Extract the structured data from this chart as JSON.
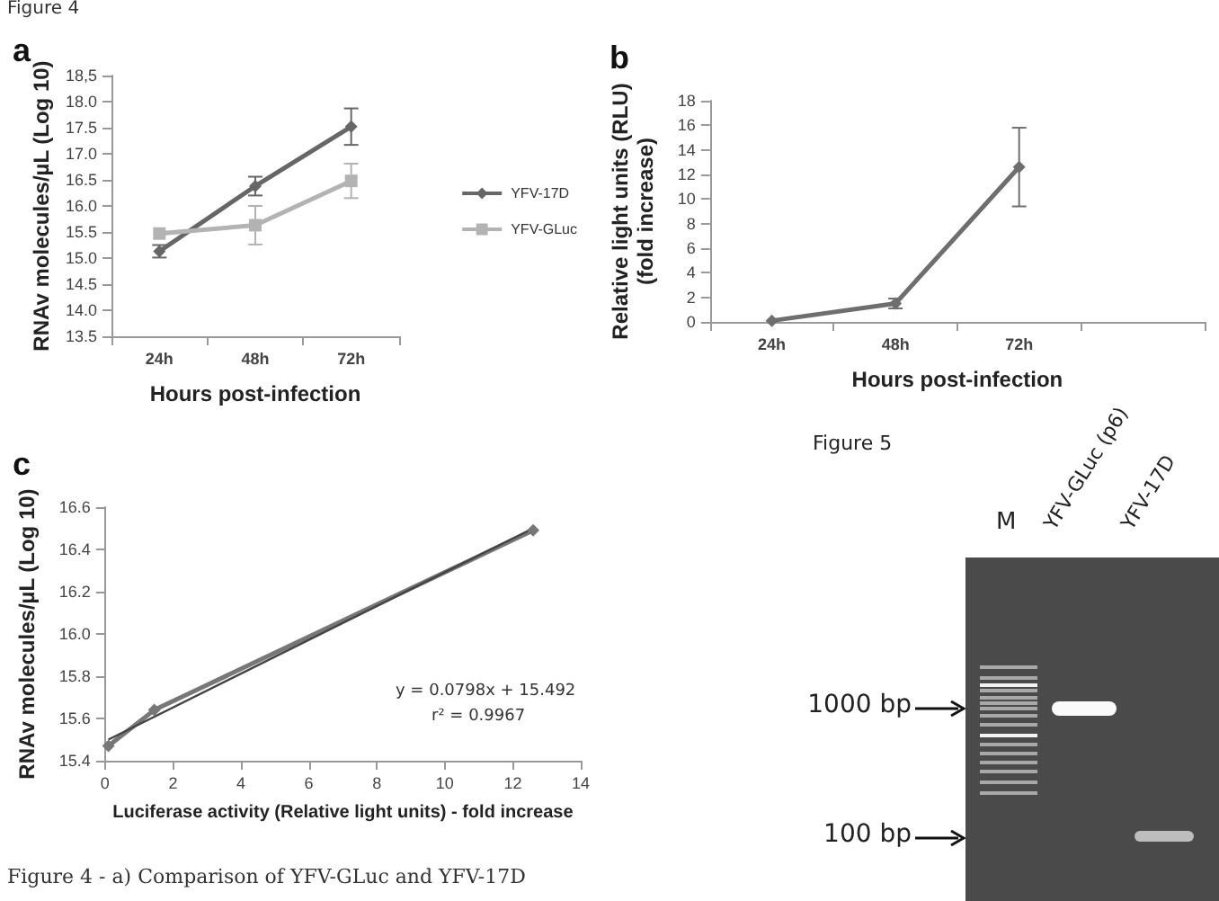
{
  "chart_data": [
    {
      "type": "line",
      "title": "a",
      "annotations": [
        "Figure 4"
      ],
      "xlabel": "Hours post-infection",
      "ylabel": "RNAv molecules/µL (Log 10)",
      "categories": [
        "24h",
        "48h",
        "72h"
      ],
      "series": [
        {
          "name": "YFV-17D",
          "color": "#666666",
          "marker": "diamond",
          "values": [
            15.13,
            16.38,
            17.52
          ],
          "errors": [
            0.12,
            0.18,
            0.35
          ]
        },
        {
          "name": "YFV-GLuc",
          "color": "#b3b3b3",
          "marker": "square",
          "values": [
            15.47,
            15.63,
            16.48
          ],
          "errors": [
            null,
            0.37,
            0.33
          ]
        }
      ],
      "ylim": [
        13.5,
        18.5
      ],
      "yticks": [
        13.5,
        {
          "value": 14,
          "label": "14.0"
        },
        14.5,
        {
          "value": 15,
          "label": "15.0"
        },
        15.5,
        {
          "value": 16,
          "label": "16.0"
        },
        16.5,
        {
          "value": 17,
          "label": "17.0"
        },
        17.5,
        {
          "value": 18,
          "label": "18.0"
        },
        {
          "value": 18.5,
          "label": "18,5"
        }
      ],
      "legend": "right"
    },
    {
      "type": "line",
      "title": "b",
      "xlabel": "Hours post-infection",
      "ylabel": "Relative light units (RLU)\n(fold increase)",
      "categories": [
        "24h",
        "48h",
        "72h",
        null
      ],
      "series": [
        {
          "color": "#6e6e6e",
          "marker": "diamond",
          "values": [
            0.1,
            1.5,
            12.6,
            null
          ],
          "errors": [
            null,
            0.4,
            3.2,
            null
          ]
        }
      ],
      "ylim": [
        0,
        18
      ],
      "yticks": [
        0,
        2,
        4,
        6,
        8,
        10,
        12,
        14,
        16,
        18
      ]
    },
    {
      "type": "line",
      "title": "c",
      "annotations": [
        "y = 0.0798x + 15.492",
        "r² = 0.9967",
        "Figure 4 - a) Comparison of YFV-GLuc and YFV-17D"
      ],
      "xlabel": "Luciferase activity (Relative light units) - fold increase",
      "ylabel": "RNAv molecules/µL (Log 10)",
      "series": [
        {
          "color": "#777777",
          "marker": "diamond",
          "x": [
            0.1,
            1.45,
            12.6
          ],
          "values": [
            15.47,
            15.64,
            16.49
          ]
        },
        {
          "color": "#444444",
          "marker": "none",
          "x": [
            0.1,
            12.6
          ],
          "values": [
            15.5,
            16.5
          ]
        }
      ],
      "xlim": [
        0,
        14
      ],
      "xticks": [
        0,
        2,
        4,
        6,
        8,
        10,
        12,
        14
      ],
      "ylim": [
        15.4,
        16.6
      ],
      "yticks": [
        15.4,
        15.6,
        15.8,
        {
          "value": 16,
          "label": "16.0"
        },
        16.2,
        16.4,
        16.6
      ]
    },
    {
      "type": "other",
      "title": "Figure 5",
      "annotations": [
        "M",
        "YFV-GLuc (p6)",
        "YFV-17D",
        "1000 bp",
        "100 bp"
      ]
    }
  ]
}
